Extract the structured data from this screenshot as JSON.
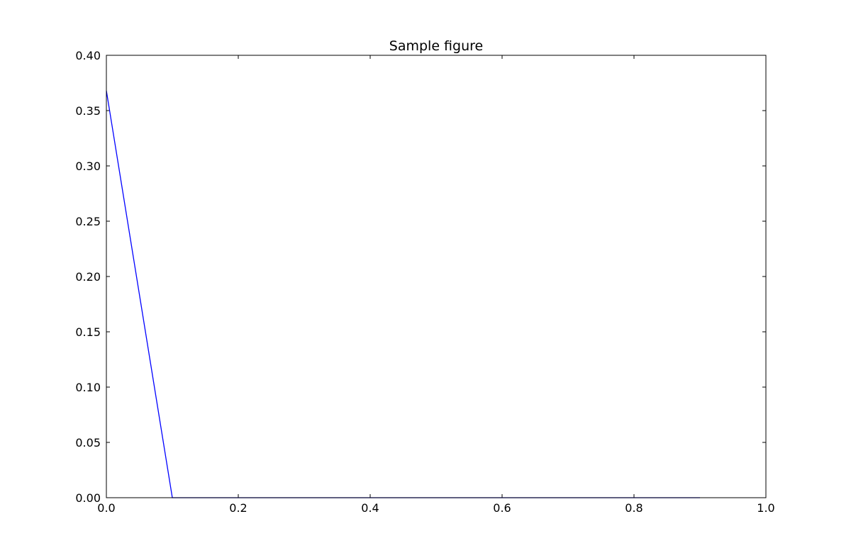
{
  "chart_data": {
    "type": "line",
    "title": "Sample figure",
    "xlabel": "",
    "ylabel": "",
    "xlim": [
      0.0,
      1.0
    ],
    "ylim": [
      0.0,
      0.4
    ],
    "x_ticks": [
      "0.0",
      "0.2",
      "0.4",
      "0.6",
      "0.8",
      "1.0"
    ],
    "y_ticks": [
      "0.00",
      "0.05",
      "0.10",
      "0.15",
      "0.20",
      "0.25",
      "0.30",
      "0.35",
      "0.40"
    ],
    "grid": false,
    "legend": "none",
    "series": [
      {
        "color": "#0000ff",
        "x": [
          0.0,
          0.1,
          0.2,
          0.3,
          0.4,
          0.5,
          0.6,
          0.7,
          0.8,
          0.9
        ],
        "y": [
          0.368,
          0.0,
          0.0,
          0.0,
          0.0,
          0.0,
          0.0,
          0.0,
          0.0,
          0.0
        ]
      }
    ]
  }
}
